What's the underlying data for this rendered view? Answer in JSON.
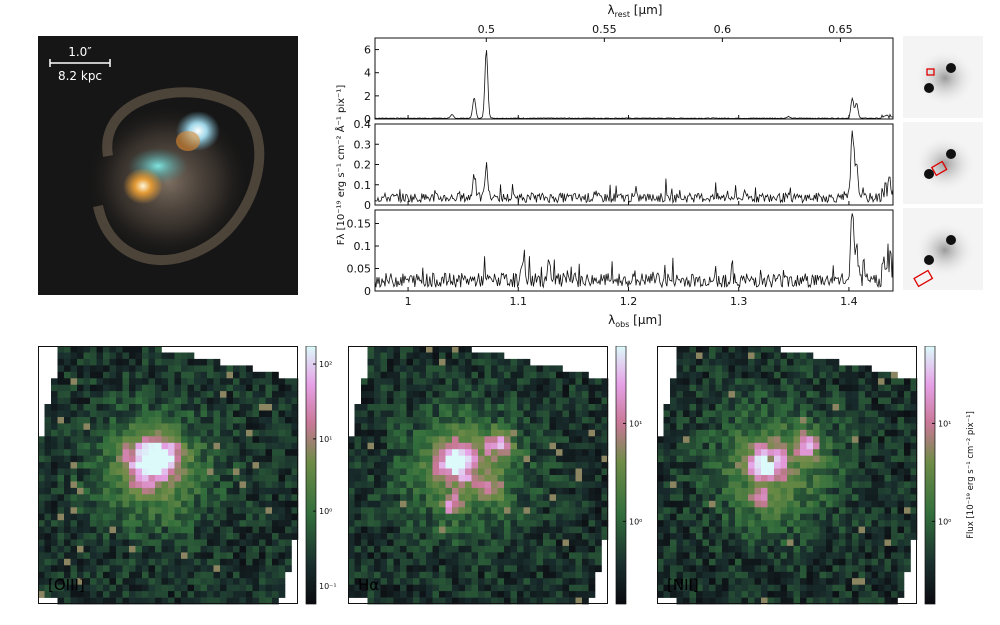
{
  "galaxy_image": {
    "scale_top": "1.0″",
    "scale_bottom": "8.2 kpc"
  },
  "spectra": {
    "top_axis_label": "λ",
    "top_axis_sub": "rest",
    "top_axis_unit": " [μm]",
    "top_ticks": [
      "0.5",
      "0.55",
      "0.6",
      "0.65"
    ],
    "bottom_axis_label": "λ",
    "bottom_axis_sub": "obs",
    "bottom_axis_unit": " [μm]",
    "bottom_ticks": [
      "1",
      "1.1",
      "1.2",
      "1.3",
      "1.4"
    ],
    "ylabel": "Fλ [10⁻¹⁹ erg s⁻¹ cm⁻² Å⁻¹ pix⁻¹]",
    "panel1_yticks": [
      "0",
      "2",
      "4",
      "6"
    ],
    "panel2_yticks": [
      "0",
      "0.1",
      "0.2",
      "0.3",
      "0.4"
    ],
    "panel3_yticks": [
      "0",
      "0.05",
      "0.1",
      "0.15"
    ]
  },
  "chart_data": [
    {
      "type": "line",
      "x_range": [
        0.97,
        1.44
      ],
      "ylim": [
        0,
        7
      ],
      "lines_um": [
        1.04,
        1.06,
        1.071,
        1.345,
        1.403,
        1.407
      ],
      "line_peaks": [
        0.3,
        1.8,
        6.0,
        0.15,
        1.7,
        1.3
      ],
      "continuum": 0.1
    },
    {
      "type": "line",
      "x_range": [
        0.97,
        1.44
      ],
      "ylim": [
        0,
        0.4
      ],
      "lines_um": [
        1.06,
        1.071,
        1.403,
        1.407
      ],
      "line_peaks": [
        0.12,
        0.16,
        0.32,
        0.19
      ],
      "continuum": 0.03
    },
    {
      "type": "line",
      "x_range": [
        0.97,
        1.44
      ],
      "ylim": [
        0,
        0.18
      ],
      "lines_um": [
        1.105,
        1.128,
        1.403,
        1.407
      ],
      "line_peaks": [
        0.06,
        0.05,
        0.16,
        0.08
      ],
      "continuum": 0.02
    }
  ],
  "maps": [
    {
      "label": "[OIII]",
      "colorbar_ticks": [
        "10²",
        "10¹",
        "10⁰",
        "10⁻¹"
      ]
    },
    {
      "label": "Hα",
      "colorbar_ticks": [
        "10¹",
        "10⁰"
      ]
    },
    {
      "label": "[NII]",
      "colorbar_ticks": [
        "10¹",
        "10⁰"
      ],
      "colorbar_label": "Flux [10⁻¹⁹ erg s⁻¹ cm⁻² pix⁻¹]"
    }
  ]
}
